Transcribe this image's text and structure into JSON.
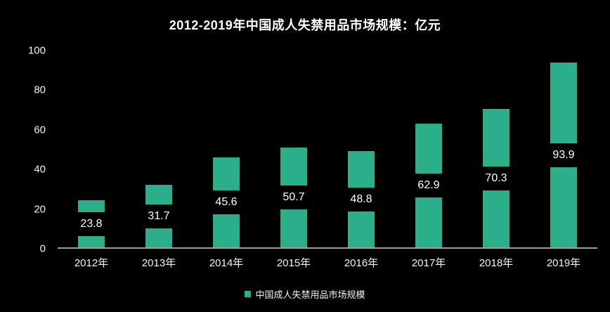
{
  "chart_data": {
    "type": "bar",
    "title": "2012-2019年中国成人失禁用品市场规模：亿元",
    "categories": [
      "2012年",
      "2013年",
      "2014年",
      "2015年",
      "2016年",
      "2017年",
      "2018年",
      "2019年"
    ],
    "series": [
      {
        "name": "中国成人失禁用品市场规模",
        "values": [
          23.8,
          31.7,
          45.6,
          50.7,
          48.8,
          62.9,
          70.3,
          93.9
        ]
      }
    ],
    "value_labels": [
      "23.8",
      "31.7",
      "45.6",
      "50.7",
      "48.8",
      "62.9",
      "70.3",
      "93.9"
    ],
    "xlabel": "",
    "ylabel": "",
    "ylim": [
      0,
      100
    ],
    "yticks": [
      0,
      20,
      40,
      60,
      80,
      100
    ],
    "grid": false,
    "legend_position": "bottom",
    "data_label_position": "inside-center",
    "colors": {
      "bar": "#2BAE8A",
      "background": "#000000",
      "text": "#FFFFFF",
      "axis_line": "#A0A0A0",
      "label_band_background": "#000000"
    }
  },
  "legend": {
    "label": "中国成人失禁用品市场规模",
    "swatch_color": "#2BAE8A"
  }
}
